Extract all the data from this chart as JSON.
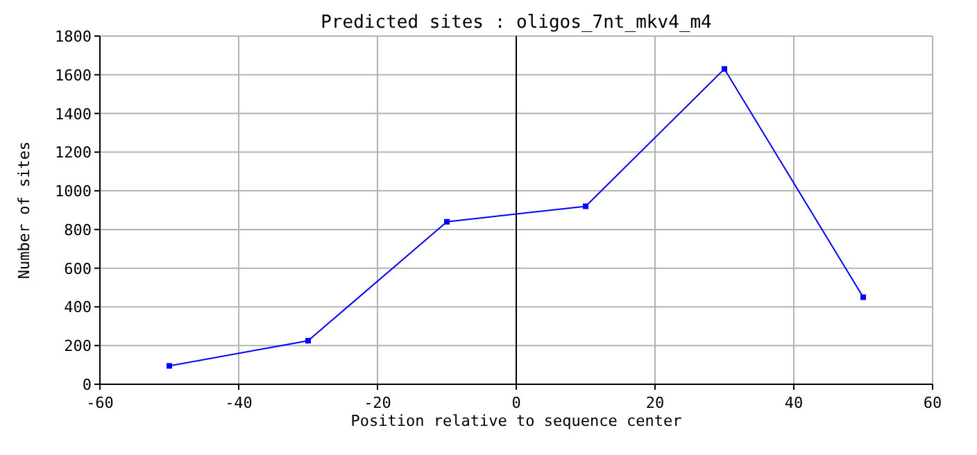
{
  "chart_data": {
    "type": "line",
    "title": "Predicted sites : oligos_7nt_mkv4_m4",
    "xlabel": "Position relative to sequence center",
    "ylabel": "Number of sites",
    "x": [
      -50,
      -30,
      -10,
      10,
      30,
      50
    ],
    "series": [
      {
        "color": "#0000ff",
        "values": [
          95,
          225,
          840,
          920,
          1630,
          450
        ]
      }
    ],
    "xlim": [
      -60,
      60
    ],
    "xticks": [
      -60,
      -40,
      -20,
      0,
      20,
      40,
      60
    ],
    "ylim": [
      0,
      1800
    ],
    "yticks": [
      0,
      200,
      400,
      600,
      800,
      1000,
      1200,
      1400,
      1600,
      1800
    ],
    "grid": true,
    "marker": "square",
    "line_style": "solid",
    "ref_lines": [
      {
        "axis": "x",
        "value": 0,
        "color": "#000000"
      }
    ]
  }
}
